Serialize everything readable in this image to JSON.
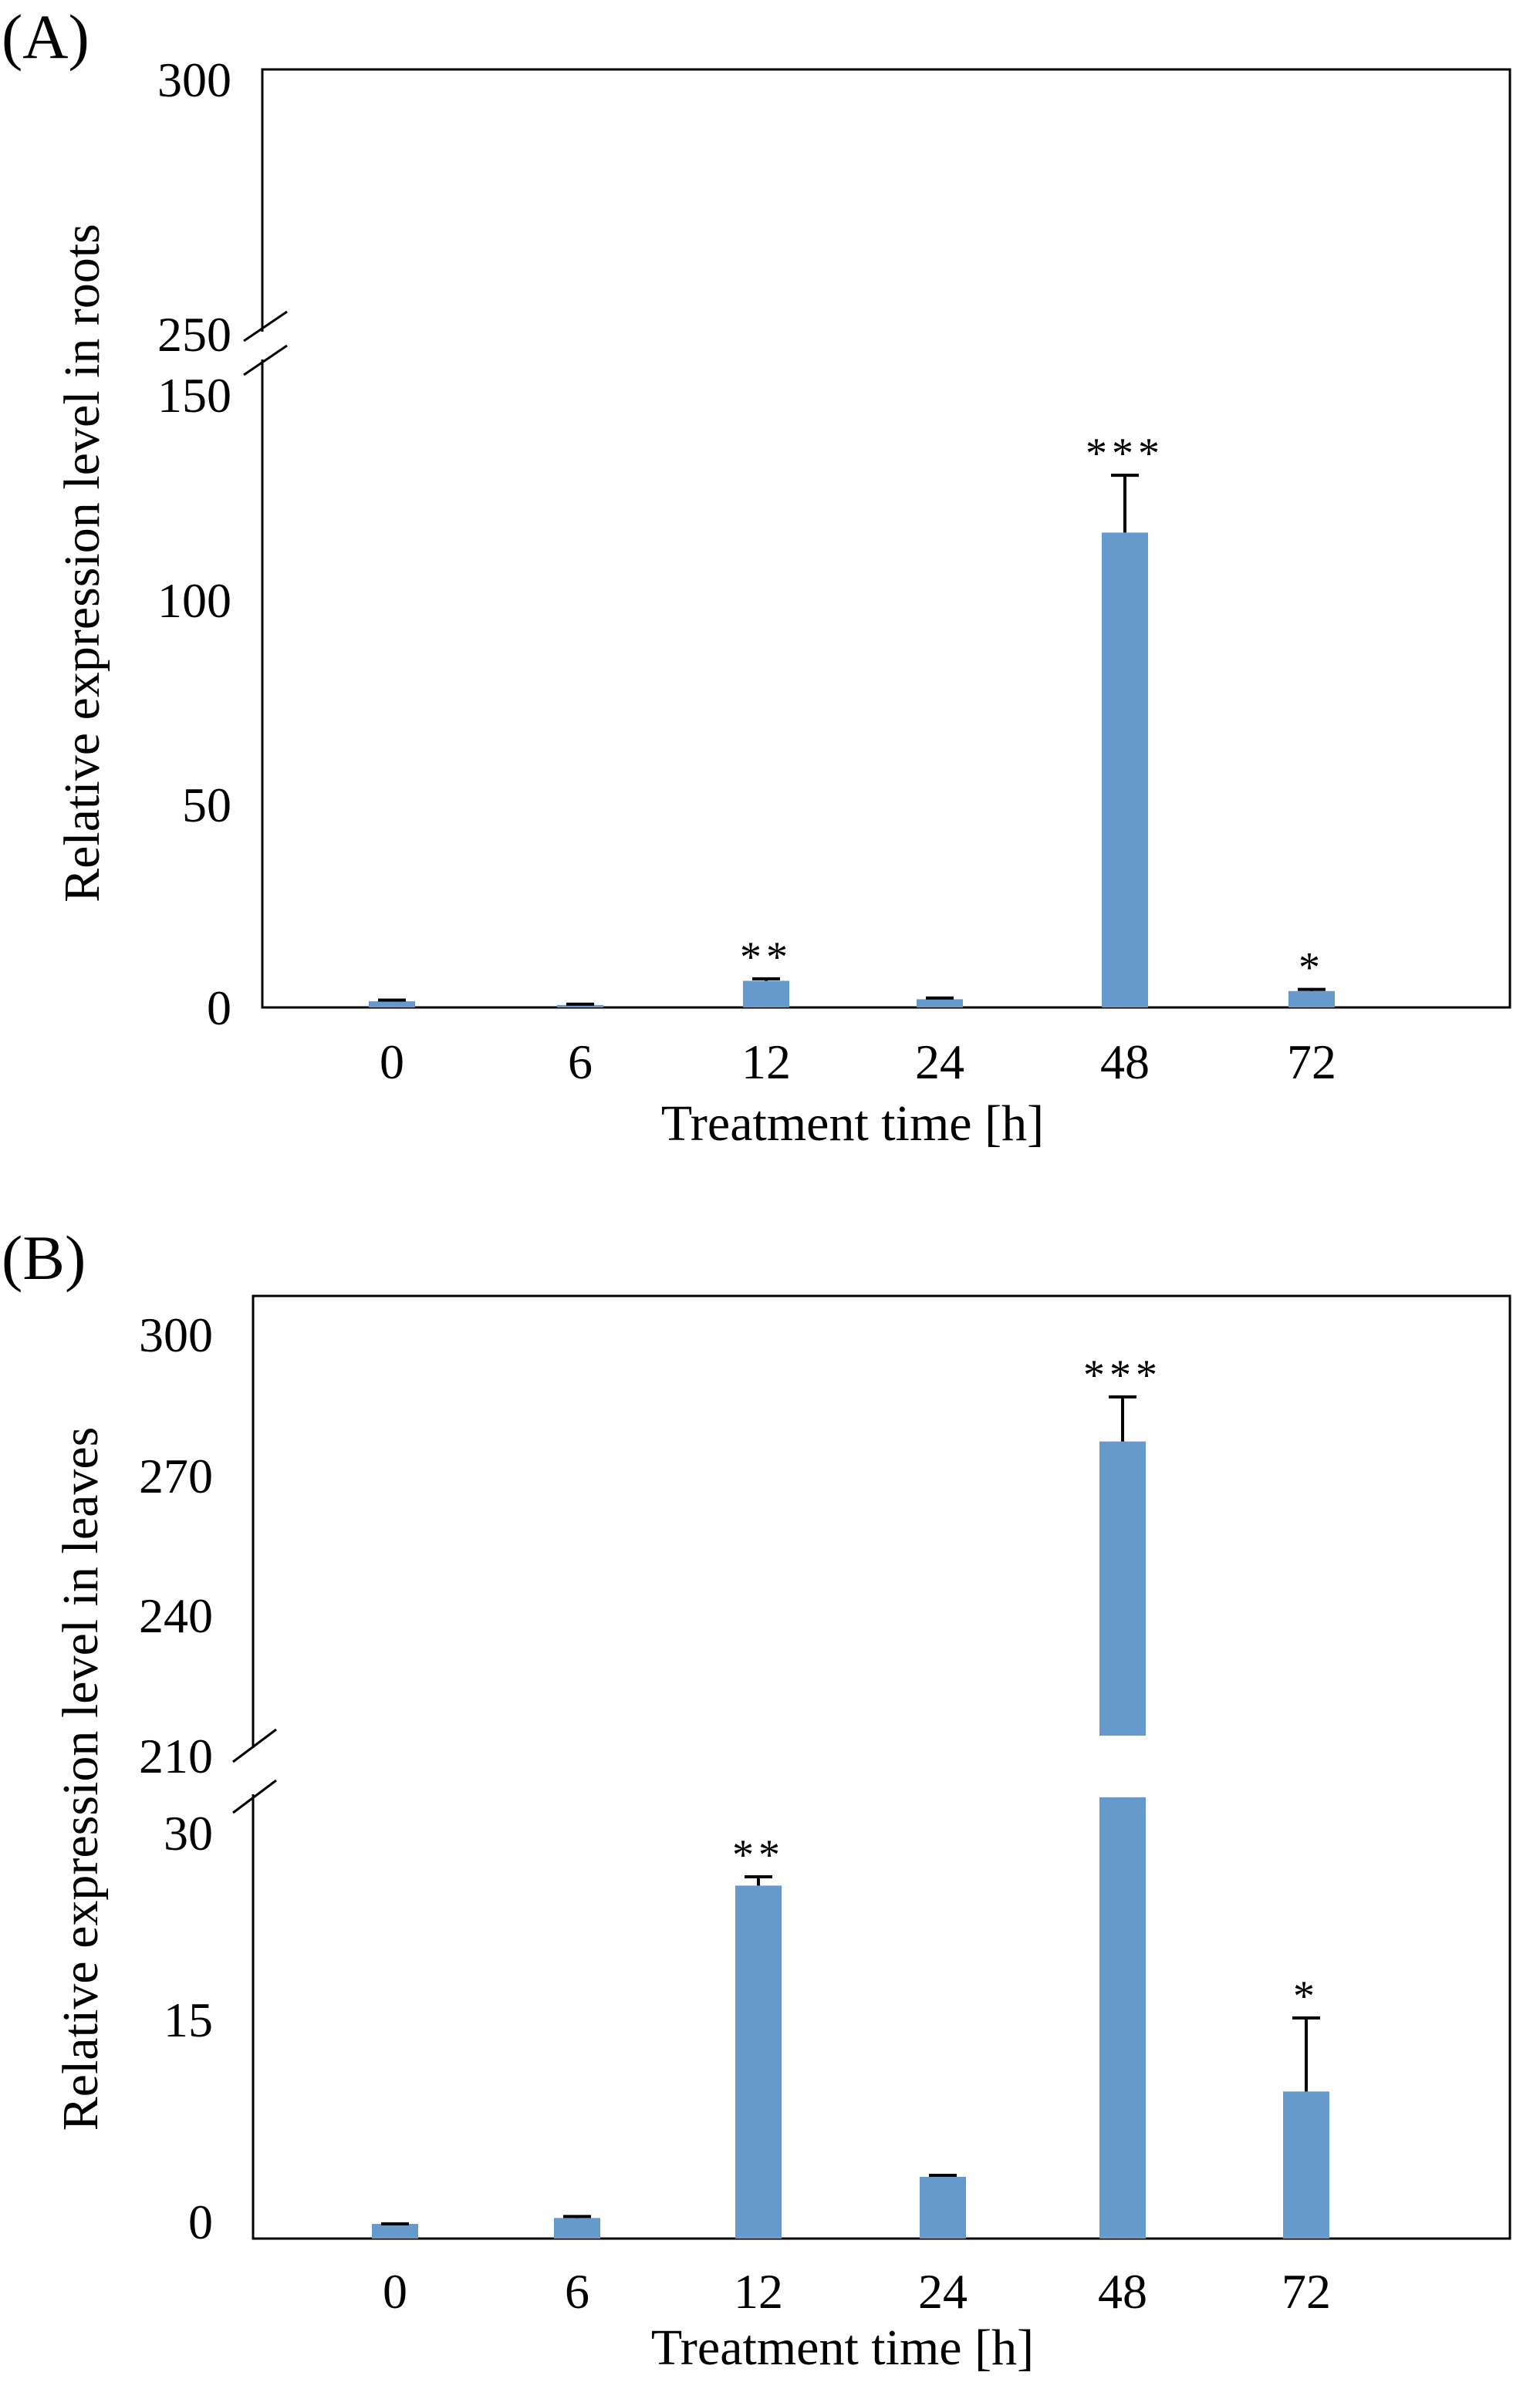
{
  "chart_data": [
    {
      "type": "bar",
      "panel_label": "(A)",
      "xlabel": "Treatment time [h]",
      "ylabel": "Relative expression level in roots",
      "categories": [
        "0",
        "6",
        "12",
        "24",
        "48",
        "72"
      ],
      "series": [
        {
          "values": [
            1.5,
            0.6,
            6.5,
            2.0,
            116,
            4.0
          ],
          "errors": [
            0.3,
            0.2,
            0.5,
            0.3,
            14,
            0.4
          ],
          "significance": [
            "",
            "",
            "**",
            "",
            "***",
            "*"
          ]
        }
      ],
      "bar_color": "#6699CC",
      "axis_break": [
        150,
        250
      ],
      "ylim": [
        0,
        300
      ],
      "yticks": [
        "0",
        "50",
        "100",
        "150",
        "250",
        "300"
      ],
      "grid": false
    },
    {
      "type": "bar",
      "panel_label": "(B)",
      "xlabel": "Treatment time [h]",
      "ylabel": "Relative expression level in leaves",
      "categories": [
        "0",
        "6",
        "12",
        "24",
        "48",
        "72"
      ],
      "series": [
        {
          "values": [
            1.0,
            1.4,
            24.0,
            4.2,
            276,
            10.0
          ],
          "errors": [
            0.0,
            0.1,
            0.6,
            0.1,
            10,
            5.0
          ],
          "significance": [
            "",
            "",
            "**",
            "",
            "***",
            "*"
          ]
        }
      ],
      "bar_color": "#6699CC",
      "axis_break": [
        30,
        210
      ],
      "ylim": [
        0,
        300
      ],
      "yticks": [
        "0",
        "15",
        "30",
        "210",
        "240",
        "270",
        "300"
      ],
      "grid": false
    }
  ]
}
